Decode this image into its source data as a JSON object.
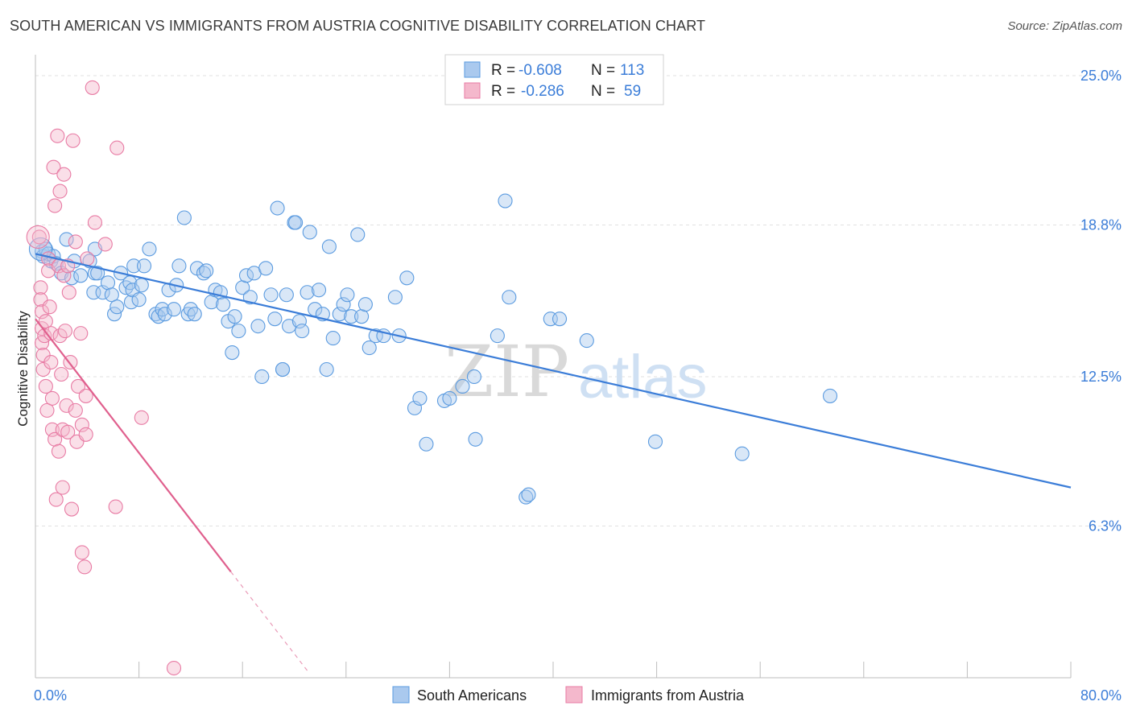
{
  "title": "SOUTH AMERICAN VS IMMIGRANTS FROM AUSTRIA COGNITIVE DISABILITY CORRELATION CHART",
  "source": "Source: ZipAtlas.com",
  "watermark": {
    "zip": "ZIP",
    "atlas": "atlas"
  },
  "chart_data": {
    "type": "scatter",
    "title": "SOUTH AMERICAN VS IMMIGRANTS FROM AUSTRIA COGNITIVE DISABILITY CORRELATION CHART",
    "xlabel": "",
    "ylabel": "Cognitive Disability",
    "xlim": [
      0,
      80
    ],
    "ylim": [
      0,
      25.5
    ],
    "x_tick_labels": [
      {
        "value": 0,
        "label": "0.0%"
      },
      {
        "value": 80,
        "label": "80.0%"
      }
    ],
    "y_ticks": [
      {
        "value": 6.3,
        "label": "6.3%"
      },
      {
        "value": 12.5,
        "label": "12.5%"
      },
      {
        "value": 18.8,
        "label": "18.8%"
      },
      {
        "value": 25.0,
        "label": "25.0%"
      }
    ],
    "x_minor_ticks": [
      0,
      8,
      16,
      24,
      32,
      40,
      48,
      56,
      64,
      72,
      80
    ],
    "grid": true,
    "legend_position": "top-center",
    "series": [
      {
        "name": "South Americans",
        "color": "#5b9be0",
        "fill": "#aac9ee",
        "R": "-0.608",
        "N": "113",
        "trend": {
          "x": [
            0,
            80
          ],
          "y": [
            17.6,
            7.9
          ]
        },
        "points": [
          [
            0.5,
            17.7
          ],
          [
            0.6,
            17.5
          ],
          [
            0.8,
            17.8
          ],
          [
            1.0,
            17.6
          ],
          [
            1.2,
            17.3
          ],
          [
            1.4,
            17.5
          ],
          [
            1.6,
            17.2
          ],
          [
            2.0,
            16.8
          ],
          [
            2.4,
            18.2
          ],
          [
            2.8,
            16.6
          ],
          [
            3.0,
            17.3
          ],
          [
            3.5,
            16.7
          ],
          [
            4.2,
            17.3
          ],
          [
            4.6,
            16.8
          ],
          [
            4.8,
            16.8
          ],
          [
            4.6,
            17.8
          ],
          [
            4.5,
            16.0
          ],
          [
            5.2,
            16.0
          ],
          [
            5.6,
            16.4
          ],
          [
            5.9,
            15.9
          ],
          [
            6.1,
            15.1
          ],
          [
            6.3,
            15.4
          ],
          [
            6.6,
            16.8
          ],
          [
            7.0,
            16.2
          ],
          [
            7.3,
            16.4
          ],
          [
            7.4,
            15.6
          ],
          [
            7.5,
            16.1
          ],
          [
            7.6,
            17.1
          ],
          [
            8.0,
            15.7
          ],
          [
            8.2,
            16.3
          ],
          [
            8.4,
            17.1
          ],
          [
            8.8,
            17.8
          ],
          [
            9.3,
            15.1
          ],
          [
            9.5,
            15.0
          ],
          [
            9.8,
            15.3
          ],
          [
            10.0,
            15.1
          ],
          [
            10.3,
            16.1
          ],
          [
            10.7,
            15.3
          ],
          [
            10.9,
            16.3
          ],
          [
            11.1,
            17.1
          ],
          [
            11.5,
            19.1
          ],
          [
            11.8,
            15.1
          ],
          [
            12.0,
            15.3
          ],
          [
            12.3,
            15.1
          ],
          [
            12.5,
            17.0
          ],
          [
            13.0,
            16.8
          ],
          [
            13.2,
            16.9
          ],
          [
            13.6,
            15.6
          ],
          [
            13.9,
            16.1
          ],
          [
            14.3,
            16.0
          ],
          [
            14.5,
            15.5
          ],
          [
            14.9,
            14.8
          ],
          [
            15.2,
            13.5
          ],
          [
            15.4,
            15.0
          ],
          [
            15.7,
            14.4
          ],
          [
            16.0,
            16.2
          ],
          [
            16.3,
            16.7
          ],
          [
            16.6,
            15.8
          ],
          [
            16.9,
            16.8
          ],
          [
            17.2,
            14.6
          ],
          [
            17.5,
            12.5
          ],
          [
            17.8,
            17.0
          ],
          [
            18.2,
            15.9
          ],
          [
            18.5,
            14.9
          ],
          [
            18.7,
            19.5
          ],
          [
            19.1,
            12.8
          ],
          [
            19.4,
            15.9
          ],
          [
            19.6,
            14.6
          ],
          [
            20.0,
            18.9
          ],
          [
            20.4,
            14.8
          ],
          [
            20.6,
            14.4
          ],
          [
            21.0,
            16.0
          ],
          [
            21.6,
            15.3
          ],
          [
            21.9,
            16.1
          ],
          [
            22.2,
            15.1
          ],
          [
            22.7,
            17.9
          ],
          [
            22.5,
            12.8
          ],
          [
            23.0,
            14.1
          ],
          [
            23.5,
            15.1
          ],
          [
            23.8,
            15.5
          ],
          [
            24.1,
            15.9
          ],
          [
            24.4,
            15.0
          ],
          [
            24.9,
            18.4
          ],
          [
            25.2,
            15.0
          ],
          [
            25.5,
            15.5
          ],
          [
            25.8,
            13.7
          ],
          [
            26.3,
            14.2
          ],
          [
            26.9,
            14.2
          ],
          [
            27.8,
            15.8
          ],
          [
            28.1,
            14.2
          ],
          [
            28.7,
            16.6
          ],
          [
            29.3,
            11.2
          ],
          [
            29.7,
            11.6
          ],
          [
            30.2,
            9.7
          ],
          [
            31.6,
            11.5
          ],
          [
            32.0,
            11.6
          ],
          [
            33.0,
            12.1
          ],
          [
            33.9,
            12.5
          ],
          [
            34.0,
            9.9
          ],
          [
            35.7,
            14.2
          ],
          [
            36.6,
            15.8
          ],
          [
            36.3,
            19.8
          ],
          [
            37.9,
            7.5
          ],
          [
            38.1,
            7.6
          ],
          [
            39.8,
            14.9
          ],
          [
            40.5,
            14.9
          ],
          [
            42.6,
            14.0
          ],
          [
            47.9,
            9.8
          ],
          [
            54.6,
            9.3
          ],
          [
            61.4,
            11.7
          ],
          [
            19.1,
            12.8
          ],
          [
            20.1,
            18.9
          ],
          [
            21.2,
            18.5
          ]
        ]
      },
      {
        "name": "Immigrants from Austria",
        "color": "#e87ba4",
        "fill": "#f4b8cc",
        "R": "-0.286",
        "N": "59",
        "trend": {
          "x": [
            0,
            15.1
          ],
          "y": [
            14.9,
            4.4
          ]
        },
        "trend_dashed": {
          "x": [
            15.1,
            21.0
          ],
          "y": [
            4.4,
            0.3
          ]
        },
        "points": [
          [
            0.3,
            18.3
          ],
          [
            0.4,
            16.2
          ],
          [
            0.4,
            15.7
          ],
          [
            0.5,
            15.2
          ],
          [
            0.5,
            14.5
          ],
          [
            0.5,
            13.9
          ],
          [
            0.6,
            13.4
          ],
          [
            0.6,
            12.8
          ],
          [
            0.7,
            14.2
          ],
          [
            0.8,
            14.8
          ],
          [
            0.8,
            12.1
          ],
          [
            0.9,
            11.1
          ],
          [
            1.0,
            17.4
          ],
          [
            1.0,
            16.9
          ],
          [
            1.1,
            15.4
          ],
          [
            1.2,
            14.3
          ],
          [
            1.2,
            13.1
          ],
          [
            1.3,
            11.6
          ],
          [
            1.3,
            10.3
          ],
          [
            1.4,
            21.2
          ],
          [
            1.5,
            19.6
          ],
          [
            1.5,
            9.9
          ],
          [
            1.6,
            7.4
          ],
          [
            1.7,
            22.5
          ],
          [
            1.8,
            17.1
          ],
          [
            1.8,
            9.4
          ],
          [
            1.9,
            20.2
          ],
          [
            1.9,
            14.2
          ],
          [
            2.0,
            12.6
          ],
          [
            2.1,
            10.3
          ],
          [
            2.1,
            7.9
          ],
          [
            2.2,
            20.9
          ],
          [
            2.2,
            16.7
          ],
          [
            2.3,
            14.4
          ],
          [
            2.4,
            11.3
          ],
          [
            2.5,
            17.1
          ],
          [
            2.5,
            10.2
          ],
          [
            2.6,
            16.0
          ],
          [
            2.7,
            13.1
          ],
          [
            2.8,
            7.0
          ],
          [
            2.9,
            22.3
          ],
          [
            3.1,
            18.1
          ],
          [
            3.1,
            11.1
          ],
          [
            3.2,
            9.8
          ],
          [
            3.3,
            12.1
          ],
          [
            3.5,
            14.3
          ],
          [
            3.6,
            10.5
          ],
          [
            3.6,
            5.2
          ],
          [
            3.8,
            4.6
          ],
          [
            3.9,
            11.7
          ],
          [
            3.9,
            10.1
          ],
          [
            4.0,
            17.4
          ],
          [
            4.4,
            24.5
          ],
          [
            4.6,
            18.9
          ],
          [
            5.4,
            18.0
          ],
          [
            6.2,
            7.1
          ],
          [
            6.3,
            22.0
          ],
          [
            8.2,
            10.8
          ],
          [
            10.7,
            0.4
          ]
        ]
      }
    ]
  }
}
